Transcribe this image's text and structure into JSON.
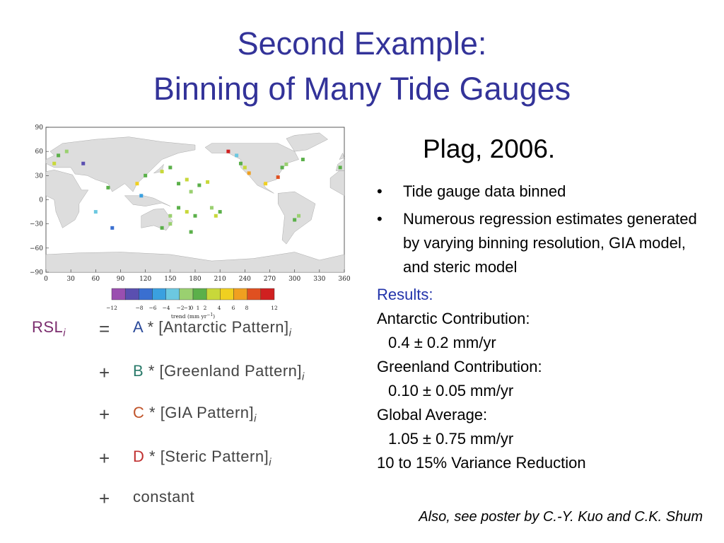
{
  "title": {
    "line1": "Second Example:",
    "line2": "Binning of Many Tide Gauges"
  },
  "map": {
    "lat_ticks": [
      "90",
      "60",
      "30",
      "0",
      "−30",
      "−60",
      "−90"
    ],
    "lon_ticks": [
      "0",
      "30",
      "60",
      "90",
      "120",
      "150",
      "180",
      "210",
      "240",
      "270",
      "300",
      "330",
      "360"
    ],
    "colorbar_ticks": [
      "−12",
      "−8",
      "−6",
      "−4",
      "−2",
      "−1",
      "0",
      "1",
      "2",
      "4",
      "6",
      "8",
      "12"
    ],
    "colorbar_label": {
      "text": "trend (mm yr",
      "sup": "−1",
      "end": ")"
    }
  },
  "equation": {
    "lhs": "RSL",
    "lhs_sub": "i",
    "rows": [
      {
        "op": "=",
        "coef": "A",
        "term": "* [Antarctic Pattern]",
        "sub": "i"
      },
      {
        "op": "+",
        "coef": "B",
        "term": "* [Greenland Pattern]",
        "sub": "i"
      },
      {
        "op": "+",
        "coef": "C",
        "term": "* [GIA Pattern]",
        "sub": "i"
      },
      {
        "op": "+",
        "coef": "D",
        "term": "* [Steric Pattern]",
        "sub": "i"
      },
      {
        "op": "+",
        "term": "constant"
      }
    ]
  },
  "citation": "Plag, 2006.",
  "bullets": [
    "Tide gauge data binned",
    "Numerous regression estimates generated by varying binning resolution, GIA model, and steric model"
  ],
  "results": {
    "heading": "Results:",
    "items": [
      {
        "label": "Antarctic Contribution:",
        "value": "0.4 ± 0.2 mm/yr"
      },
      {
        "label": "Greenland Contribution:",
        "value": "0.10 ± 0.05 mm/yr"
      },
      {
        "label": "Global Average:",
        "value": "1.05 ± 0.75 mm/yr"
      }
    ],
    "summary": "10 to 15% Variance Reduction"
  },
  "footnote": "Also, see poster by C.-Y. Kuo and C.K. Shum"
}
